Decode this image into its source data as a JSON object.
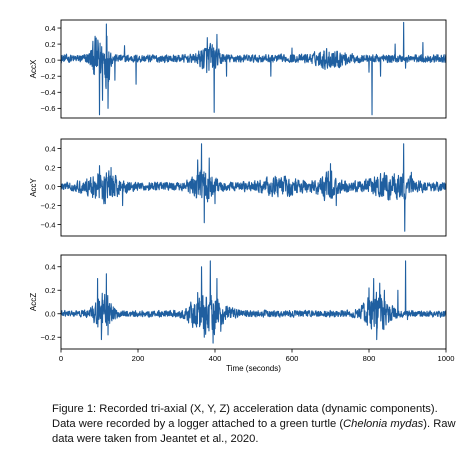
{
  "chart_data": [
    {
      "type": "line",
      "ylabel": "AccX",
      "xlim": [
        0,
        1000
      ],
      "ylim": [
        -0.72,
        0.5
      ],
      "yticks": [
        -0.6,
        -0.4,
        -0.2,
        0.0,
        0.2,
        0.4
      ],
      "ytick_labels": [
        "−0.6",
        "−0.4",
        "−0.2",
        "0.0",
        "0.2",
        "0.4"
      ],
      "grid": false,
      "line_color": "#1f5fa0",
      "noise_amplitude": 0.045,
      "baseline": 0.02,
      "bursts": [
        {
          "x": 95,
          "width": 18,
          "amplitude": 0.22
        },
        {
          "x": 120,
          "width": 8,
          "amplitude": 0.3
        },
        {
          "x": 385,
          "width": 25,
          "amplitude": 0.14
        },
        {
          "x": 700,
          "width": 40,
          "amplitude": 0.08
        }
      ],
      "spikes": [
        {
          "x": 100,
          "y": -0.68
        },
        {
          "x": 108,
          "y": -0.5
        },
        {
          "x": 118,
          "y": 0.45
        },
        {
          "x": 122,
          "y": -0.6
        },
        {
          "x": 140,
          "y": -0.25
        },
        {
          "x": 165,
          "y": 0.18
        },
        {
          "x": 195,
          "y": -0.3
        },
        {
          "x": 380,
          "y": 0.28
        },
        {
          "x": 398,
          "y": -0.65
        },
        {
          "x": 405,
          "y": 0.32
        },
        {
          "x": 430,
          "y": -0.2
        },
        {
          "x": 545,
          "y": -0.2
        },
        {
          "x": 600,
          "y": 0.15
        },
        {
          "x": 800,
          "y": -0.15
        },
        {
          "x": 808,
          "y": -0.68
        },
        {
          "x": 830,
          "y": -0.2
        },
        {
          "x": 868,
          "y": 0.2
        },
        {
          "x": 890,
          "y": 0.47
        },
        {
          "x": 895,
          "y": -0.1
        },
        {
          "x": 940,
          "y": 0.22
        }
      ]
    },
    {
      "type": "line",
      "ylabel": "AccY",
      "xlim": [
        0,
        1000
      ],
      "ylim": [
        -0.52,
        0.5
      ],
      "yticks": [
        -0.4,
        -0.2,
        0.0,
        0.2,
        0.4
      ],
      "ytick_labels": [
        "−0.4",
        "−0.2",
        "0.0",
        "0.2",
        "0.4"
      ],
      "grid": false,
      "line_color": "#1f5fa0",
      "noise_amplitude": 0.04,
      "baseline": 0.0,
      "bursts": [
        {
          "x": 110,
          "width": 45,
          "amplitude": 0.11
        },
        {
          "x": 370,
          "width": 30,
          "amplitude": 0.14
        },
        {
          "x": 570,
          "width": 60,
          "amplitude": 0.06
        },
        {
          "x": 700,
          "width": 35,
          "amplitude": 0.1
        },
        {
          "x": 860,
          "width": 60,
          "amplitude": 0.1
        }
      ],
      "spikes": [
        {
          "x": 100,
          "y": 0.22
        },
        {
          "x": 115,
          "y": -0.18
        },
        {
          "x": 130,
          "y": 0.2
        },
        {
          "x": 160,
          "y": -0.2
        },
        {
          "x": 355,
          "y": 0.28
        },
        {
          "x": 365,
          "y": 0.45
        },
        {
          "x": 372,
          "y": -0.38
        },
        {
          "x": 385,
          "y": 0.3
        },
        {
          "x": 400,
          "y": -0.18
        },
        {
          "x": 700,
          "y": 0.24
        },
        {
          "x": 715,
          "y": -0.2
        },
        {
          "x": 890,
          "y": 0.45
        },
        {
          "x": 893,
          "y": -0.47
        },
        {
          "x": 910,
          "y": 0.15
        }
      ]
    },
    {
      "type": "line",
      "ylabel": "AccZ",
      "xlabel": "Time (seconds)",
      "xlim": [
        0,
        1000
      ],
      "xticks": [
        0,
        200,
        400,
        600,
        800,
        1000
      ],
      "xtick_labels": [
        "0",
        "200",
        "400",
        "600",
        "800",
        "1000"
      ],
      "ylim": [
        -0.3,
        0.5
      ],
      "yticks": [
        -0.2,
        0.0,
        0.2,
        0.4
      ],
      "ytick_labels": [
        "−0.2",
        "0.0",
        "0.2",
        "0.4"
      ],
      "grid": false,
      "line_color": "#1f5fa0",
      "noise_amplitude": 0.025,
      "baseline": 0.0,
      "bursts": [
        {
          "x": 110,
          "width": 25,
          "amplitude": 0.13
        },
        {
          "x": 380,
          "width": 45,
          "amplitude": 0.15
        },
        {
          "x": 820,
          "width": 35,
          "amplitude": 0.14
        }
      ],
      "spikes": [
        {
          "x": 95,
          "y": 0.3
        },
        {
          "x": 105,
          "y": -0.22
        },
        {
          "x": 118,
          "y": 0.34
        },
        {
          "x": 122,
          "y": -0.18
        },
        {
          "x": 355,
          "y": 0.18
        },
        {
          "x": 365,
          "y": 0.4
        },
        {
          "x": 372,
          "y": -0.2
        },
        {
          "x": 388,
          "y": 0.45
        },
        {
          "x": 395,
          "y": -0.25
        },
        {
          "x": 405,
          "y": 0.3
        },
        {
          "x": 415,
          "y": -0.15
        },
        {
          "x": 800,
          "y": 0.22
        },
        {
          "x": 812,
          "y": 0.3
        },
        {
          "x": 820,
          "y": -0.22
        },
        {
          "x": 828,
          "y": 0.26
        },
        {
          "x": 840,
          "y": 0.2
        },
        {
          "x": 875,
          "y": 0.2
        },
        {
          "x": 895,
          "y": 0.45
        },
        {
          "x": 900,
          "y": -0.05
        }
      ]
    }
  ],
  "caption": {
    "part1": "Figure 1: Recorded tri-axial (X, Y, Z) acceleration data (dynamic components). Data were recorded by a logger attached to a green turtle (",
    "species": "Chelonia mydas",
    "part2": "). Raw data were taken from Jeantet et al., 2020."
  }
}
